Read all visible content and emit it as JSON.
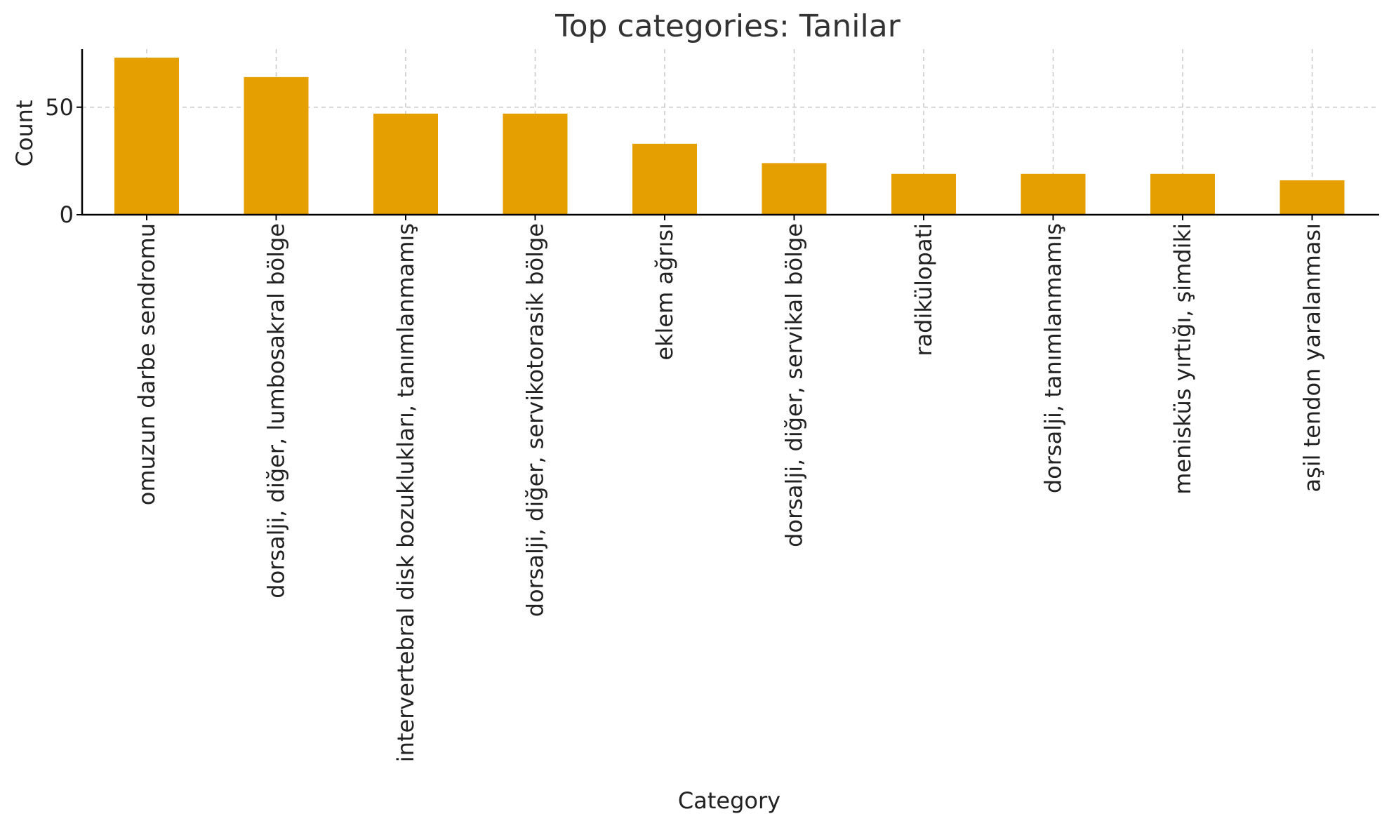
{
  "chart_data": {
    "type": "bar",
    "title": "Top categories: Tanilar",
    "xlabel": "Category",
    "ylabel": "Count",
    "categories": [
      "omuzun darbe sendromu",
      "dorsalji, diğer, lumbosakral bölge",
      "intervertebral disk bozuklukları, tanımlanmamış",
      "dorsalji, diğer, servikotorasik bölge",
      "eklem ağrısı",
      "dorsalji, diğer, servikal bölge",
      "radikülopati",
      "dorsalji, tanımlanmamış",
      "menisküs yırtığı, şimdiki",
      "aşil tendon yaralanması"
    ],
    "values": [
      73,
      64,
      47,
      47,
      33,
      24,
      19,
      19,
      19,
      16
    ],
    "ylim": [
      0,
      77
    ],
    "yticks": [
      0,
      50
    ],
    "grid": true,
    "bar_color": "#E69F00"
  }
}
